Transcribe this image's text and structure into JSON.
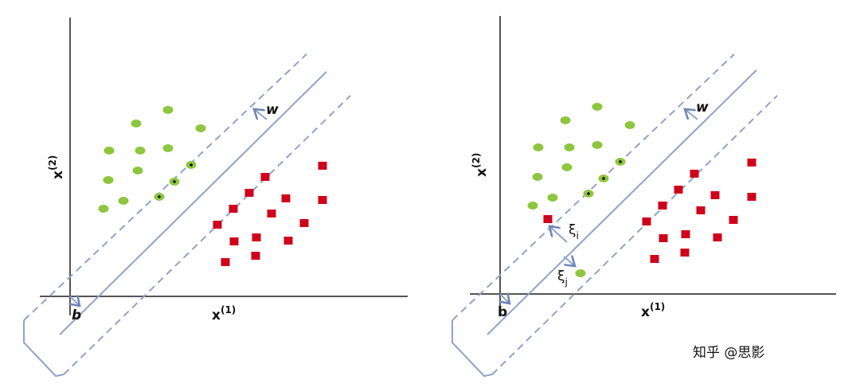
{
  "panels": [
    {
      "y_axis_label": "x",
      "y_axis_sup": "(2)",
      "x_axis_label": "x",
      "x_axis_sup": "(1)",
      "normal_label": "w",
      "bias_label": "b"
    },
    {
      "y_axis_label": "x",
      "y_axis_sup": "(2)",
      "x_axis_label": "x",
      "x_axis_sup": "(1)",
      "normal_label": "w",
      "bias_label": "b",
      "slack_i": "ξ",
      "slack_i_sub": "i",
      "slack_j": "ξ",
      "slack_j_sub": "j"
    }
  ],
  "watermark": "知乎 @思影"
}
